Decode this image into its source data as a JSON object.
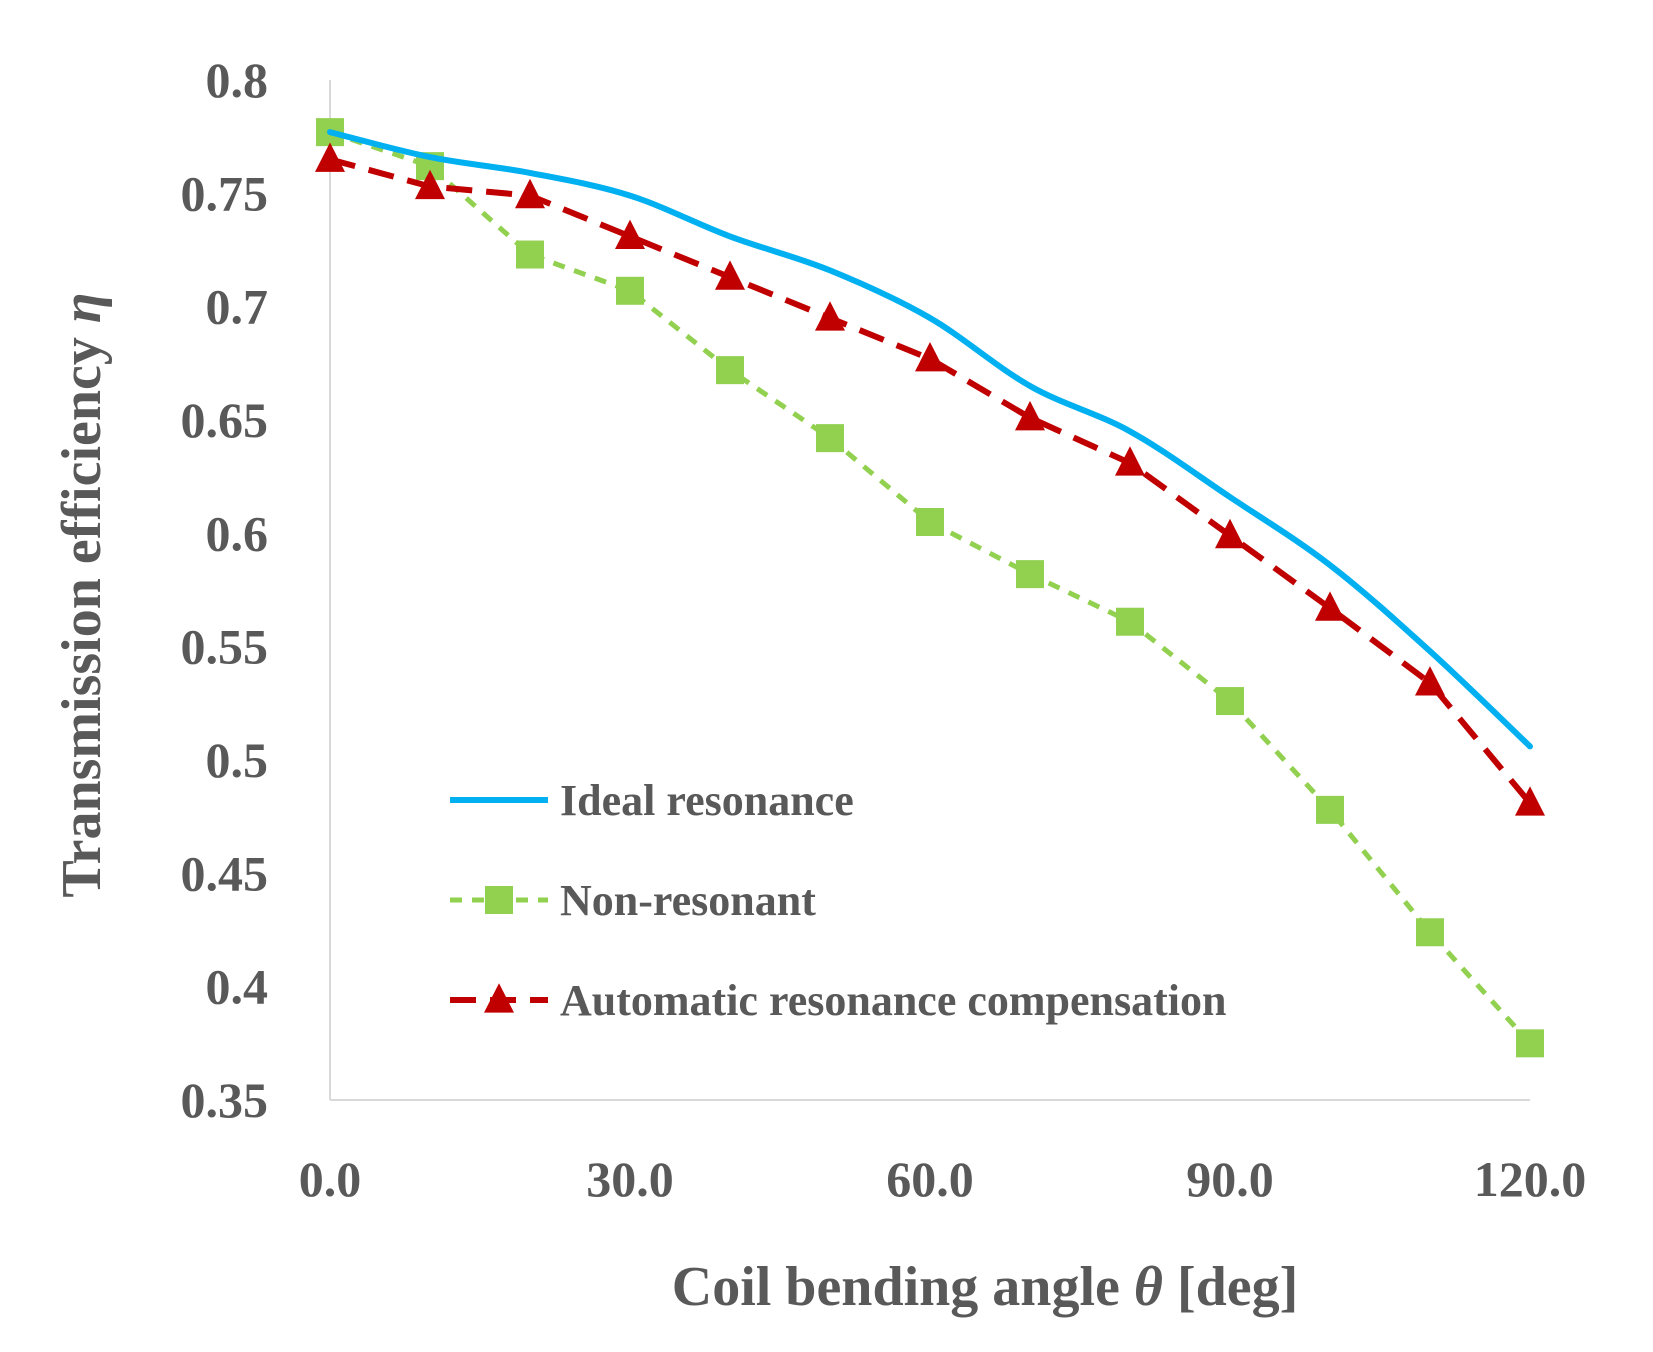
{
  "chart_data": {
    "type": "line",
    "xlabel_text": "Coil bending angle ",
    "xlabel_symbol": "θ",
    "xlabel_unit": " [deg]",
    "ylabel_text": "Transmission efficiency ",
    "ylabel_symbol": "η",
    "xlim": [
      0,
      120
    ],
    "ylim": [
      0.35,
      0.8
    ],
    "xticks": [
      "0.0",
      "30.0",
      "60.0",
      "90.0",
      "120.0"
    ],
    "xtick_values": [
      0,
      30,
      60,
      90,
      120
    ],
    "yticks": [
      "0.8",
      "0.75",
      "0.7",
      "0.65",
      "0.6",
      "0.55",
      "0.5",
      "0.45",
      "0.4",
      "0.35"
    ],
    "ytick_values": [
      0.8,
      0.75,
      0.7,
      0.65,
      0.6,
      0.55,
      0.5,
      0.45,
      0.4,
      0.35
    ],
    "grid": false,
    "legend_position": "bottom-center",
    "x": [
      0,
      10,
      20,
      30,
      40,
      50,
      60,
      70,
      80,
      90,
      100,
      110,
      120
    ],
    "series": [
      {
        "name": "Ideal resonance",
        "values": [
          0.777,
          0.766,
          0.759,
          0.749,
          0.731,
          0.716,
          0.695,
          0.665,
          0.645,
          0.616,
          0.586,
          0.548,
          0.506
        ],
        "color": "#00b0f0",
        "style": "solid",
        "marker": "none"
      },
      {
        "name": "Non-resonant",
        "values": [
          0.777,
          0.762,
          0.723,
          0.707,
          0.672,
          0.642,
          0.605,
          0.582,
          0.561,
          0.526,
          0.478,
          0.424,
          0.375
        ],
        "color": "#92d050",
        "style": "dashed",
        "marker": "square"
      },
      {
        "name": "Automatic resonance compensation",
        "values": [
          0.765,
          0.753,
          0.749,
          0.731,
          0.713,
          0.695,
          0.677,
          0.651,
          0.631,
          0.599,
          0.567,
          0.534,
          0.481
        ],
        "color": "#c00000",
        "style": "dashed",
        "marker": "triangle"
      }
    ]
  }
}
